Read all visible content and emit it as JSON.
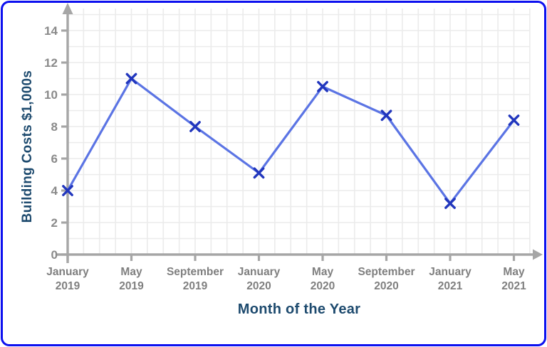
{
  "window": {
    "background": "#ffffff",
    "border_color": "#0c10ef"
  },
  "chart_data": {
    "type": "line",
    "title": "",
    "xlabel": "Month of the Year",
    "ylabel": "Building Costs $1,000s",
    "categories": [
      "January 2019",
      "May 2019",
      "September 2019",
      "January 2020",
      "May 2020",
      "September 2020",
      "January 2021",
      "May 2021"
    ],
    "x_tick_lines": [
      [
        "January",
        "2019"
      ],
      [
        "May",
        "2019"
      ],
      [
        "September",
        "2019"
      ],
      [
        "January",
        "2020"
      ],
      [
        "May",
        "2020"
      ],
      [
        "September",
        "2020"
      ],
      [
        "January",
        "2021"
      ],
      [
        "May",
        "2021"
      ]
    ],
    "series": [
      {
        "name": "Building Costs",
        "values": [
          4,
          11,
          8,
          5.1,
          10.5,
          8.7,
          3.2,
          8.4
        ]
      }
    ],
    "ylim": [
      0,
      15
    ],
    "yticks": [
      0,
      2,
      4,
      6,
      8,
      10,
      12,
      14
    ],
    "grid": true,
    "legend": "none",
    "marker": "x",
    "colors": {
      "line": "#5b74e4",
      "marker": "#2136bd",
      "axis": "#a6a6a6",
      "grid": "#ebebeb",
      "tick_labels": "#8a8a8a",
      "axis_titles": "#1d4a6e"
    }
  }
}
